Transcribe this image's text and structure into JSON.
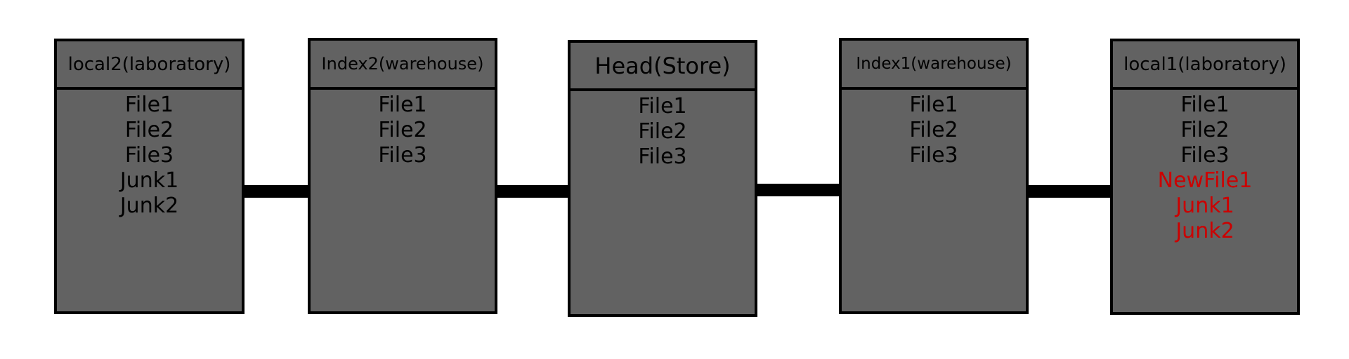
{
  "colors": {
    "box_fill": "#626262",
    "border": "#000000",
    "connector": "#000000",
    "normal_text": "#000000",
    "new_text": "#cc0000"
  },
  "boxes": [
    {
      "title": "local2(laboratory)",
      "files": [
        {
          "name": "File1",
          "state": "normal"
        },
        {
          "name": "File2",
          "state": "normal"
        },
        {
          "name": "File3",
          "state": "normal"
        },
        {
          "name": "Junk1",
          "state": "normal"
        },
        {
          "name": "Junk2",
          "state": "normal"
        }
      ]
    },
    {
      "title": "Index2(warehouse)",
      "files": [
        {
          "name": "File1",
          "state": "normal"
        },
        {
          "name": "File2",
          "state": "normal"
        },
        {
          "name": "File3",
          "state": "normal"
        }
      ]
    },
    {
      "title": "Head(Store)",
      "files": [
        {
          "name": "File1",
          "state": "normal"
        },
        {
          "name": "File2",
          "state": "normal"
        },
        {
          "name": "File3",
          "state": "normal"
        }
      ]
    },
    {
      "title": "Index1(warehouse)",
      "files": [
        {
          "name": "File1",
          "state": "normal"
        },
        {
          "name": "File2",
          "state": "normal"
        },
        {
          "name": "File3",
          "state": "normal"
        }
      ]
    },
    {
      "title": "local1(laboratory)",
      "files": [
        {
          "name": "File1",
          "state": "normal"
        },
        {
          "name": "File2",
          "state": "normal"
        },
        {
          "name": "File3",
          "state": "normal"
        },
        {
          "name": "NewFile1",
          "state": "new"
        },
        {
          "name": "Junk1",
          "state": "new"
        },
        {
          "name": "Junk2",
          "state": "new"
        }
      ]
    }
  ]
}
